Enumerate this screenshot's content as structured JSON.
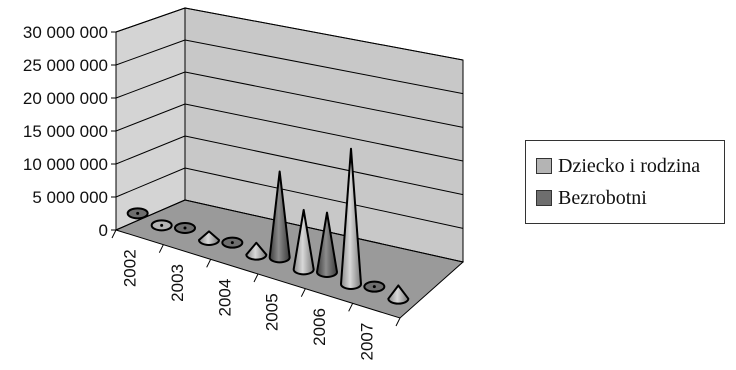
{
  "chart_data": {
    "type": "bar",
    "subtype": "3d-cone",
    "categories": [
      "2002",
      "2003",
      "2004",
      "2005",
      "2006",
      "2007"
    ],
    "series": [
      {
        "name": "Dziecko i rodzina",
        "color": "#b4b4b4",
        "values": [
          0,
          1300000,
          1800000,
          9000000,
          20500000,
          2000000
        ]
      },
      {
        "name": "Bezrobotni",
        "color": "#6e6e6e",
        "values": [
          0,
          0,
          0,
          13000000,
          9000000,
          0
        ]
      }
    ],
    "y_ticks": [
      "0",
      "5 000 000",
      "10 000 000",
      "15 000 000",
      "20 000 000",
      "25 000 000",
      "30 000 000"
    ],
    "ylim": [
      0,
      30000000
    ],
    "grid": true,
    "legend_position": "right"
  }
}
